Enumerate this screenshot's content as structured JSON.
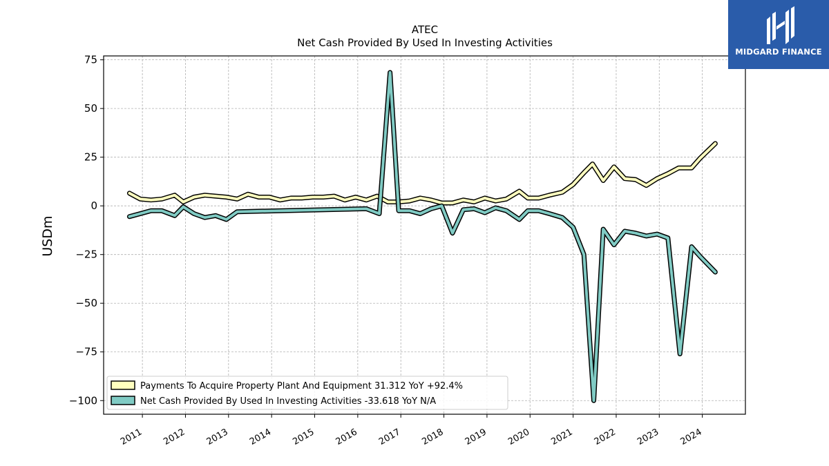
{
  "brand": {
    "name": "MIDGARD FINANCE",
    "logo_color": "#2a5caa"
  },
  "chart_data": {
    "type": "line",
    "title": "ATEC",
    "subtitle": "Net Cash Provided By Used In Investing Activities",
    "ylabel": "USDm",
    "xlabel": "",
    "ylim": [
      -107,
      77
    ],
    "xlim": [
      2010.1,
      2025.0
    ],
    "yticks": [
      75,
      50,
      25,
      0,
      -25,
      -50,
      -75,
      -100
    ],
    "ytick_labels": [
      "75",
      "50",
      "25",
      "0",
      "−25",
      "−50",
      "−75",
      "−100"
    ],
    "xticks": [
      2011,
      2012,
      2013,
      2014,
      2015,
      2016,
      2017,
      2018,
      2019,
      2020,
      2021,
      2022,
      2023,
      2024
    ],
    "xtick_labels": [
      "2011",
      "2012",
      "2013",
      "2014",
      "2015",
      "2016",
      "2017",
      "2018",
      "2019",
      "2020",
      "2021",
      "2022",
      "2023",
      "2024"
    ],
    "grid": true,
    "legend_position": "bottom-left",
    "series": [
      {
        "name": "Payments To Acquire Property Plant And Equipment  31.312 YoY +92.4%",
        "color": "#ffffbf",
        "points": [
          [
            2010.7,
            6.5
          ],
          [
            2010.95,
            3.5
          ],
          [
            2011.2,
            3.0
          ],
          [
            2011.45,
            3.5
          ],
          [
            2011.75,
            5.5
          ],
          [
            2011.95,
            2.0
          ],
          [
            2012.2,
            4.5
          ],
          [
            2012.45,
            5.5
          ],
          [
            2012.7,
            5.0
          ],
          [
            2012.95,
            4.5
          ],
          [
            2013.2,
            3.5
          ],
          [
            2013.45,
            6.0
          ],
          [
            2013.7,
            4.5
          ],
          [
            2013.95,
            4.5
          ],
          [
            2014.2,
            3.0
          ],
          [
            2014.45,
            4.0
          ],
          [
            2014.7,
            4.0
          ],
          [
            2014.95,
            4.5
          ],
          [
            2015.2,
            4.5
          ],
          [
            2015.45,
            5.0
          ],
          [
            2015.7,
            3.0
          ],
          [
            2015.95,
            4.5
          ],
          [
            2016.2,
            3.0
          ],
          [
            2016.45,
            5.0
          ],
          [
            2016.7,
            2.0
          ],
          [
            2016.95,
            2.0
          ],
          [
            2017.2,
            2.5
          ],
          [
            2017.45,
            4.0
          ],
          [
            2017.7,
            3.0
          ],
          [
            2017.95,
            1.5
          ],
          [
            2018.2,
            1.5
          ],
          [
            2018.45,
            3.0
          ],
          [
            2018.7,
            2.0
          ],
          [
            2018.95,
            4.0
          ],
          [
            2019.2,
            2.5
          ],
          [
            2019.45,
            3.5
          ],
          [
            2019.75,
            7.5
          ],
          [
            2019.95,
            4.0
          ],
          [
            2020.2,
            4.0
          ],
          [
            2020.45,
            5.5
          ],
          [
            2020.75,
            7.0
          ],
          [
            2021.0,
            11.0
          ],
          [
            2021.25,
            17.0
          ],
          [
            2021.45,
            21.5
          ],
          [
            2021.7,
            13.0
          ],
          [
            2021.95,
            20.0
          ],
          [
            2022.2,
            14.0
          ],
          [
            2022.45,
            13.5
          ],
          [
            2022.7,
            10.5
          ],
          [
            2022.95,
            14.0
          ],
          [
            2023.2,
            16.5
          ],
          [
            2023.45,
            19.5
          ],
          [
            2023.75,
            19.5
          ],
          [
            2023.95,
            24.5
          ],
          [
            2024.3,
            32.0
          ]
        ]
      },
      {
        "name": "Net Cash Provided By Used In Investing Activities  -33.618 YoY N/A",
        "color": "#80cbc4",
        "points": [
          [
            2010.7,
            -5.5
          ],
          [
            2010.95,
            -4.0
          ],
          [
            2011.2,
            -2.5
          ],
          [
            2011.45,
            -2.5
          ],
          [
            2011.75,
            -5.0
          ],
          [
            2011.95,
            -0.5
          ],
          [
            2012.2,
            -4.0
          ],
          [
            2012.45,
            -6.0
          ],
          [
            2012.7,
            -5.0
          ],
          [
            2012.95,
            -7.0
          ],
          [
            2013.2,
            -3.0
          ],
          [
            2016.2,
            -1.5
          ],
          [
            2016.5,
            -4.0
          ],
          [
            2016.75,
            68.5
          ],
          [
            2016.95,
            -2.5
          ],
          [
            2017.2,
            -2.5
          ],
          [
            2017.45,
            -4.0
          ],
          [
            2017.7,
            -1.5
          ],
          [
            2017.95,
            0.0
          ],
          [
            2018.2,
            -14.0
          ],
          [
            2018.45,
            -2.0
          ],
          [
            2018.7,
            -1.5
          ],
          [
            2018.95,
            -3.5
          ],
          [
            2019.2,
            -1.0
          ],
          [
            2019.45,
            -2.5
          ],
          [
            2019.75,
            -7.0
          ],
          [
            2019.95,
            -2.5
          ],
          [
            2020.2,
            -2.5
          ],
          [
            2020.45,
            -4.0
          ],
          [
            2020.75,
            -6.0
          ],
          [
            2021.0,
            -11.0
          ],
          [
            2021.25,
            -25.0
          ],
          [
            2021.48,
            -100.0
          ],
          [
            2021.7,
            -12.0
          ],
          [
            2021.95,
            -20.0
          ],
          [
            2022.2,
            -13.0
          ],
          [
            2022.45,
            -14.0
          ],
          [
            2022.7,
            -15.5
          ],
          [
            2022.95,
            -14.5
          ],
          [
            2023.2,
            -16.5
          ],
          [
            2023.48,
            -76.0
          ],
          [
            2023.75,
            -21.0
          ],
          [
            2023.95,
            -26.0
          ],
          [
            2024.3,
            -34.0
          ]
        ]
      }
    ]
  }
}
